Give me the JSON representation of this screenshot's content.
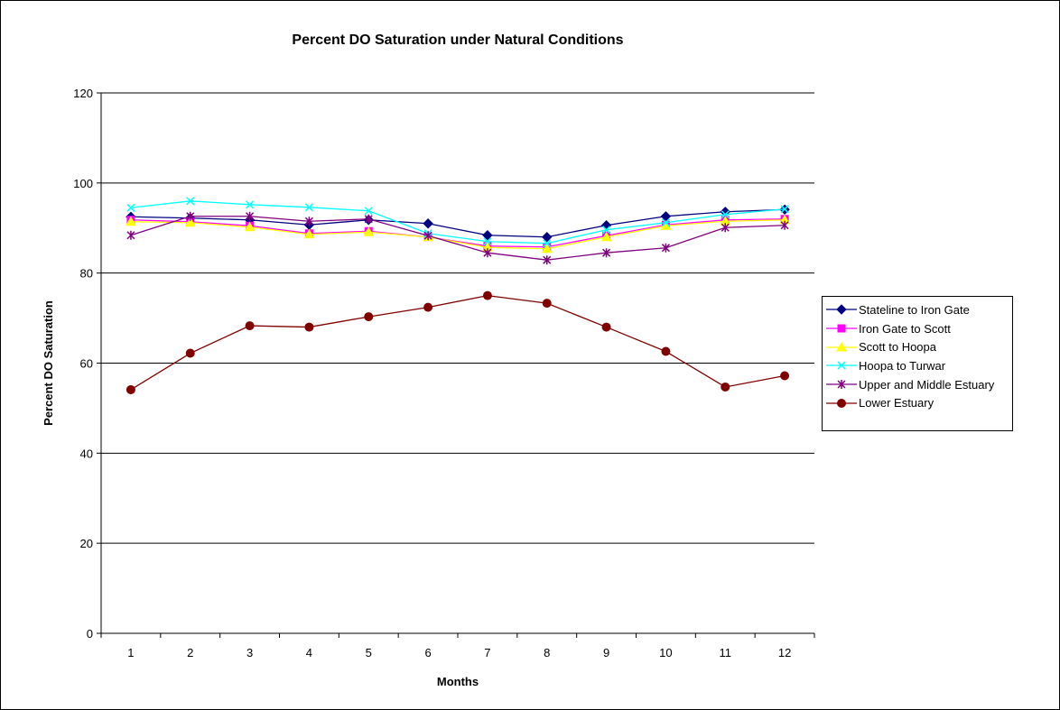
{
  "chart_data": {
    "type": "line",
    "title": "Percent DO Saturation under Natural Conditions",
    "xlabel": "Months",
    "ylabel": "Percent DO Saturation",
    "ylim": [
      0,
      120
    ],
    "yticks": [
      0,
      20,
      40,
      60,
      80,
      100,
      120
    ],
    "categories": [
      "1",
      "2",
      "3",
      "4",
      "5",
      "6",
      "7",
      "8",
      "9",
      "10",
      "11",
      "12"
    ],
    "grid": "horizontal",
    "legend_position": "right",
    "series": [
      {
        "name": "Stateline to Iron Gate",
        "color": "#000080",
        "marker": "diamond",
        "values": [
          92.5,
          92.2,
          91.8,
          90.7,
          91.8,
          91.0,
          88.4,
          88.0,
          90.6,
          92.6,
          93.6,
          94.1
        ]
      },
      {
        "name": "Iron Gate to Scott",
        "color": "#FF00FF",
        "marker": "square",
        "values": [
          91.8,
          91.4,
          90.5,
          88.8,
          89.3,
          88.0,
          86.0,
          85.8,
          88.3,
          90.7,
          91.8,
          92.0
        ]
      },
      {
        "name": "Scott to Hoopa",
        "color": "#FFFF00",
        "marker": "triangle",
        "values": [
          91.4,
          91.2,
          90.2,
          88.6,
          89.1,
          88.0,
          85.7,
          85.4,
          88.0,
          90.5,
          91.5,
          91.8
        ]
      },
      {
        "name": "Hoopa to Turwar",
        "color": "#00FFFF",
        "marker": "x",
        "values": [
          94.5,
          96.0,
          95.2,
          94.6,
          93.8,
          88.8,
          87.0,
          86.6,
          89.6,
          91.2,
          93.0,
          94.2
        ]
      },
      {
        "name": "Upper and Middle Estuary",
        "color": "#800080",
        "marker": "star",
        "values": [
          88.4,
          92.6,
          92.6,
          91.5,
          92.0,
          88.3,
          84.5,
          82.9,
          84.5,
          85.6,
          90.1,
          90.6
        ]
      },
      {
        "name": "Lower Estuary",
        "color": "#800000",
        "marker": "circle",
        "values": [
          54.1,
          62.2,
          68.3,
          68.0,
          70.3,
          72.4,
          75.0,
          73.3,
          68.0,
          62.6,
          54.7,
          57.2
        ]
      }
    ]
  }
}
